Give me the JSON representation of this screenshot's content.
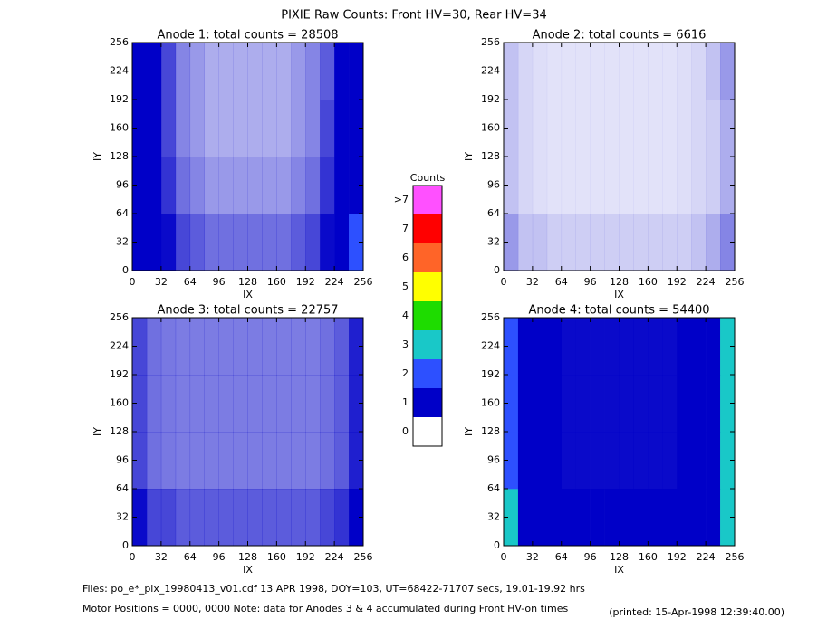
{
  "title": "PIXIE Raw Counts:  Front HV=30, Rear HV=34",
  "colorbar": {
    "title": "Counts",
    "labels": [
      "0",
      "1",
      "2",
      "3",
      "4",
      "5",
      "6",
      "7",
      ">7"
    ],
    "colors": [
      "#ffffff",
      "#0000c8",
      "#2d50ff",
      "#19c8c8",
      "#1edc00",
      "#ffff00",
      "#ff6428",
      "#ff0000",
      "#ff50ff"
    ]
  },
  "footer": {
    "files": "Files: po_e*_pix_19980413_v01.cdf     13 APR 1998, DOY=103, UT=68422-71707 secs, 19.01-19.92 hrs",
    "motor": "Motor Positions = 0000, 0000     Note: data for Anodes 3 & 4 accumulated during Front HV-on times",
    "printed": "(printed: 15-Apr-1998 12:39:40.00)"
  },
  "chart_data": [
    {
      "type": "heatmap",
      "title": "Anode 1: total counts = 28508",
      "x_label": "IX",
      "y_label": "IY",
      "xlim": [
        0,
        256
      ],
      "ylim": [
        0,
        256
      ],
      "xticks": [
        0,
        32,
        64,
        96,
        128,
        160,
        192,
        224,
        256
      ],
      "yticks": [
        0,
        32,
        64,
        96,
        128,
        160,
        192,
        224,
        256
      ],
      "values": [
        [
          1.9,
          1.1,
          0.6,
          0.45,
          0.4,
          0.35,
          0.35,
          0.35,
          0.35,
          0.35,
          0.35,
          0.4,
          0.45,
          0.6,
          1.2,
          2.1
        ],
        [
          1.6,
          0.9,
          0.5,
          0.35,
          0.3,
          0.25,
          0.25,
          0.25,
          0.25,
          0.25,
          0.25,
          0.3,
          0.35,
          0.5,
          1.0,
          1.8
        ],
        [
          1.5,
          0.8,
          0.45,
          0.3,
          0.25,
          0.2,
          0.2,
          0.2,
          0.2,
          0.2,
          0.2,
          0.25,
          0.3,
          0.45,
          0.9,
          1.7
        ],
        [
          1.5,
          0.8,
          0.45,
          0.3,
          0.25,
          0.2,
          0.2,
          0.2,
          0.2,
          0.2,
          0.2,
          0.25,
          0.3,
          0.4,
          0.9,
          1.6
        ]
      ]
    },
    {
      "type": "heatmap",
      "title": "Anode 2: total counts = 6616",
      "x_label": "IX",
      "y_label": "IY",
      "xlim": [
        0,
        256
      ],
      "ylim": [
        0,
        256
      ],
      "xticks": [
        0,
        32,
        64,
        96,
        128,
        160,
        192,
        224,
        256
      ],
      "yticks": [
        0,
        32,
        64,
        96,
        128,
        160,
        192,
        224,
        256
      ],
      "values": [
        [
          0.25,
          0.15,
          0.15,
          0.12,
          0.12,
          0.12,
          0.12,
          0.12,
          0.12,
          0.12,
          0.12,
          0.12,
          0.12,
          0.15,
          0.2,
          0.3
        ],
        [
          0.15,
          0.1,
          0.08,
          0.07,
          0.07,
          0.07,
          0.07,
          0.07,
          0.07,
          0.07,
          0.07,
          0.07,
          0.08,
          0.1,
          0.12,
          0.2
        ],
        [
          0.15,
          0.1,
          0.08,
          0.07,
          0.07,
          0.07,
          0.07,
          0.07,
          0.07,
          0.07,
          0.07,
          0.07,
          0.08,
          0.1,
          0.12,
          0.2
        ],
        [
          0.15,
          0.1,
          0.08,
          0.07,
          0.07,
          0.07,
          0.07,
          0.07,
          0.07,
          0.07,
          0.07,
          0.07,
          0.08,
          0.1,
          0.15,
          0.25
        ]
      ]
    },
    {
      "type": "heatmap",
      "title": "Anode 3: total counts = 22757",
      "x_label": "IX",
      "y_label": "IY",
      "xlim": [
        0,
        256
      ],
      "ylim": [
        0,
        256
      ],
      "xticks": [
        0,
        32,
        64,
        96,
        128,
        160,
        192,
        224,
        256
      ],
      "yticks": [
        0,
        32,
        64,
        96,
        128,
        160,
        192,
        224,
        256
      ],
      "values": [
        [
          0.6,
          0.45,
          0.45,
          0.4,
          0.4,
          0.4,
          0.4,
          0.4,
          0.4,
          0.4,
          0.4,
          0.4,
          0.4,
          0.45,
          0.5,
          0.7
        ],
        [
          0.45,
          0.35,
          0.33,
          0.32,
          0.32,
          0.32,
          0.32,
          0.32,
          0.32,
          0.32,
          0.32,
          0.32,
          0.32,
          0.35,
          0.4,
          0.55
        ],
        [
          0.45,
          0.35,
          0.33,
          0.32,
          0.32,
          0.32,
          0.32,
          0.32,
          0.32,
          0.32,
          0.32,
          0.32,
          0.32,
          0.35,
          0.4,
          0.55
        ],
        [
          0.45,
          0.35,
          0.33,
          0.32,
          0.32,
          0.32,
          0.32,
          0.32,
          0.32,
          0.32,
          0.32,
          0.32,
          0.32,
          0.35,
          0.4,
          0.55
        ]
      ]
    },
    {
      "type": "heatmap",
      "title": "Anode 4: total counts = 54400",
      "x_label": "IX",
      "y_label": "IY",
      "xlim": [
        0,
        256
      ],
      "ylim": [
        0,
        256
      ],
      "xticks": [
        0,
        32,
        64,
        96,
        128,
        160,
        192,
        224,
        256
      ],
      "yticks": [
        0,
        32,
        64,
        96,
        128,
        160,
        192,
        224,
        256
      ],
      "values": [
        [
          3.2,
          1.4,
          0.9,
          0.8,
          0.75,
          0.75,
          0.75,
          0.75,
          0.75,
          0.75,
          0.75,
          0.75,
          0.8,
          0.9,
          1.6,
          3.6
        ],
        [
          2.8,
          1.2,
          0.75,
          0.65,
          0.6,
          0.6,
          0.6,
          0.6,
          0.6,
          0.6,
          0.6,
          0.6,
          0.65,
          0.75,
          1.4,
          3.2
        ],
        [
          2.8,
          1.2,
          0.75,
          0.65,
          0.6,
          0.6,
          0.6,
          0.6,
          0.6,
          0.6,
          0.6,
          0.6,
          0.65,
          0.75,
          1.4,
          3.2
        ],
        [
          2.8,
          1.2,
          0.75,
          0.65,
          0.6,
          0.6,
          0.6,
          0.6,
          0.6,
          0.6,
          0.6,
          0.6,
          0.65,
          0.75,
          1.4,
          3.2
        ]
      ]
    }
  ]
}
